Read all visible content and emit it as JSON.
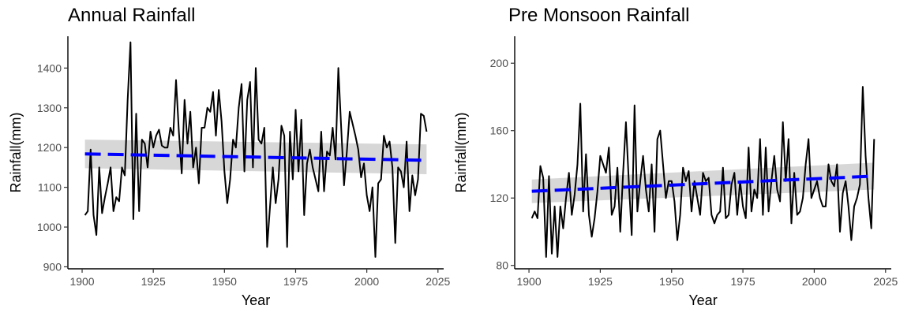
{
  "chart_data": [
    {
      "type": "line",
      "title": "Annual Rainfall",
      "xlabel": "Year",
      "ylabel": "Rainfall(mm)",
      "xlim": [
        1895,
        2027
      ],
      "ylim": [
        895,
        1480
      ],
      "xticks": [
        1900,
        1925,
        1950,
        1975,
        2000,
        2025
      ],
      "yticks": [
        900,
        1000,
        1100,
        1200,
        1300,
        1400
      ],
      "grid": false,
      "colors": {
        "observed": "#000000",
        "trend": "#0000ff",
        "ci": "#d3d3d3"
      },
      "series": [
        {
          "x": [
            1901,
            1902,
            1903,
            1904,
            1905,
            1906,
            1907,
            1908,
            1909,
            1910,
            1911,
            1912,
            1913,
            1914,
            1915,
            1916,
            1917,
            1918,
            1919,
            1920,
            1921,
            1922,
            1923,
            1924,
            1925,
            1926,
            1927,
            1928,
            1929,
            1930,
            1931,
            1932,
            1933,
            1934,
            1935,
            1936,
            1937,
            1938,
            1939,
            1940,
            1941,
            1942,
            1943,
            1944,
            1945,
            1946,
            1947,
            1948,
            1949,
            1950,
            1951,
            1952,
            1953,
            1954,
            1955,
            1956,
            1957,
            1958,
            1959,
            1960,
            1961,
            1962,
            1963,
            1964,
            1965,
            1966,
            1967,
            1968,
            1969,
            1970,
            1971,
            1972,
            1973,
            1974,
            1975,
            1976,
            1977,
            1978,
            1979,
            1980,
            1981,
            1982,
            1983,
            1984,
            1985,
            1986,
            1987,
            1988,
            1989,
            1990,
            1991,
            1992,
            1993,
            1994,
            1995,
            1996,
            1997,
            1998,
            1999,
            2000,
            2001,
            2002,
            2003,
            2004,
            2005,
            2006,
            2007,
            2008,
            2009,
            2010,
            2011,
            2012,
            2013,
            2014,
            2015,
            2016,
            2017,
            2018,
            2019,
            2020,
            2021
          ],
          "values": [
            1030,
            1040,
            1195,
            1030,
            980,
            1150,
            1035,
            1075,
            1110,
            1150,
            1040,
            1075,
            1065,
            1150,
            1130,
            1320,
            1465,
            1020,
            1285,
            1040,
            1220,
            1210,
            1150,
            1240,
            1200,
            1230,
            1245,
            1205,
            1200,
            1200,
            1250,
            1230,
            1370,
            1240,
            1135,
            1320,
            1210,
            1290,
            1150,
            1200,
            1110,
            1250,
            1250,
            1300,
            1290,
            1340,
            1230,
            1345,
            1265,
            1140,
            1060,
            1120,
            1220,
            1200,
            1300,
            1360,
            1140,
            1320,
            1365,
            1150,
            1400,
            1220,
            1210,
            1250,
            950,
            1050,
            1150,
            1060,
            1120,
            1255,
            1230,
            950,
            1240,
            1120,
            1295,
            1140,
            1270,
            1030,
            1160,
            1195,
            1150,
            1120,
            1090,
            1240,
            1090,
            1190,
            1180,
            1250,
            1170,
            1400,
            1250,
            1105,
            1190,
            1290,
            1260,
            1230,
            1195,
            1125,
            1160,
            1080,
            1040,
            1100,
            925,
            1110,
            1120,
            1230,
            1200,
            1215,
            1150,
            960,
            1150,
            1140,
            1100,
            1215,
            1040,
            1130,
            1080,
            1120,
            1285,
            1280,
            1240
          ]
        }
      ],
      "trend": {
        "x": [
          1901,
          2021
        ],
        "values": [
          1184,
          1168
        ],
        "ci_start": [
          1148,
          1220
        ],
        "ci_end": [
          1133,
          1208
        ]
      }
    },
    {
      "type": "line",
      "title": "Pre Monsoon Rainfall",
      "xlabel": "Year",
      "ylabel": "Rainfall(mm)",
      "xlim": [
        1895,
        2027
      ],
      "ylim": [
        78,
        216
      ],
      "xticks": [
        1900,
        1925,
        1950,
        1975,
        2000,
        2025
      ],
      "yticks": [
        80,
        120,
        160,
        200
      ],
      "grid": false,
      "colors": {
        "observed": "#000000",
        "trend": "#0000ff",
        "ci": "#d3d3d3"
      },
      "series": [
        {
          "x": [
            1901,
            1902,
            1903,
            1904,
            1905,
            1906,
            1907,
            1908,
            1909,
            1910,
            1911,
            1912,
            1913,
            1914,
            1915,
            1916,
            1917,
            1918,
            1919,
            1920,
            1921,
            1922,
            1923,
            1924,
            1925,
            1926,
            1927,
            1928,
            1929,
            1930,
            1931,
            1932,
            1933,
            1934,
            1935,
            1936,
            1937,
            1938,
            1939,
            1940,
            1941,
            1942,
            1943,
            1944,
            1945,
            1946,
            1947,
            1948,
            1949,
            1950,
            1951,
            1952,
            1953,
            1954,
            1955,
            1956,
            1957,
            1958,
            1959,
            1960,
            1961,
            1962,
            1963,
            1964,
            1965,
            1966,
            1967,
            1968,
            1969,
            1970,
            1971,
            1972,
            1973,
            1974,
            1975,
            1976,
            1977,
            1978,
            1979,
            1980,
            1981,
            1982,
            1983,
            1984,
            1985,
            1986,
            1987,
            1988,
            1989,
            1990,
            1991,
            1992,
            1993,
            1994,
            1995,
            1996,
            1997,
            1998,
            1999,
            2000,
            2001,
            2002,
            2003,
            2004,
            2005,
            2006,
            2007,
            2008,
            2009,
            2010,
            2011,
            2012,
            2013,
            2014,
            2015,
            2016,
            2017,
            2018,
            2019,
            2020,
            2021
          ],
          "values": [
            108,
            112,
            108,
            139,
            132,
            85,
            133,
            87,
            115,
            85,
            115,
            102,
            120,
            135,
            110,
            122,
            140,
            176,
            112,
            146,
            110,
            97,
            108,
            124,
            145,
            140,
            135,
            150,
            110,
            115,
            138,
            100,
            135,
            165,
            130,
            98,
            175,
            112,
            130,
            145,
            125,
            112,
            140,
            100,
            155,
            160,
            140,
            120,
            130,
            130,
            118,
            95,
            110,
            138,
            130,
            136,
            112,
            130,
            120,
            110,
            135,
            130,
            132,
            110,
            105,
            110,
            112,
            138,
            108,
            110,
            128,
            135,
            110,
            130,
            115,
            108,
            150,
            112,
            125,
            120,
            155,
            110,
            150,
            112,
            130,
            145,
            125,
            118,
            165,
            130,
            155,
            105,
            135,
            110,
            112,
            120,
            140,
            155,
            120,
            125,
            130,
            120,
            115,
            115,
            140,
            130,
            127,
            140,
            100,
            123,
            130,
            115,
            95,
            115,
            120,
            128,
            186,
            145,
            120,
            102,
            155
          ]
        }
      ],
      "trend": {
        "x": [
          1901,
          2021
        ],
        "values": [
          124,
          133
        ],
        "ci_start": [
          117,
          131
        ],
        "ci_end": [
          125,
          141
        ]
      }
    }
  ]
}
